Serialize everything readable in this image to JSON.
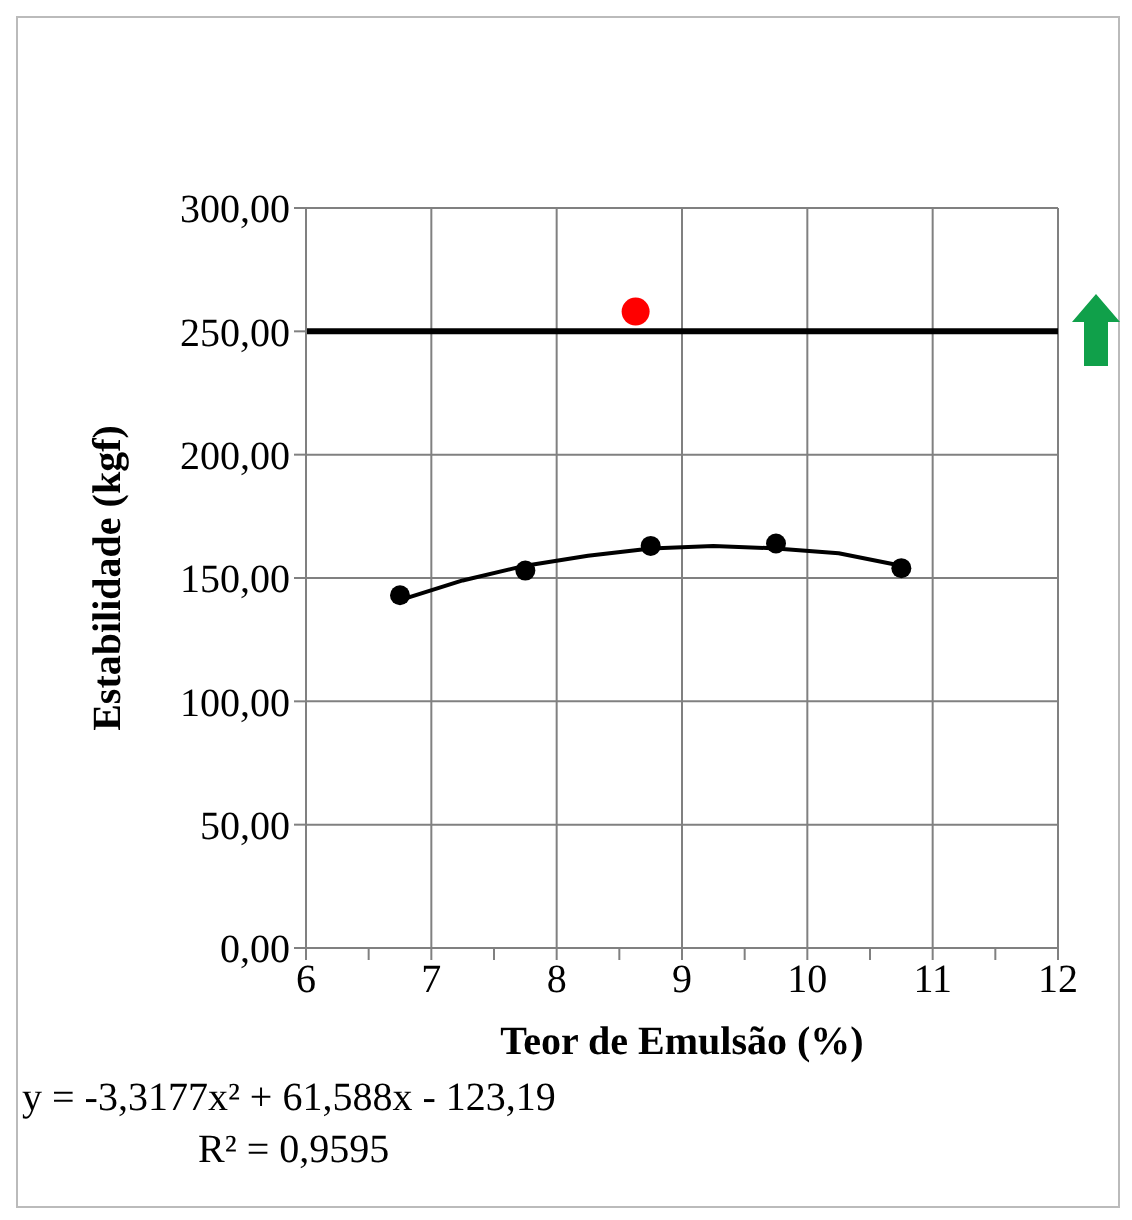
{
  "chart_data": {
    "type": "scatter",
    "xlabel": "Teor de Emulsão (%)",
    "ylabel": "Estabilidade (kgf)",
    "xlim": [
      6,
      12
    ],
    "xticks": [
      6,
      {
        "value": 6.5,
        "label": null
      },
      7,
      {
        "value": 7.5,
        "label": null
      },
      8,
      {
        "value": 8.5,
        "label": null
      },
      9,
      {
        "value": 9.5,
        "label": null
      },
      10,
      {
        "value": 10.5,
        "label": null
      },
      11,
      {
        "value": 11.5,
        "label": null
      },
      12
    ],
    "ylim": [
      0,
      300
    ],
    "yticks": [
      {
        "value": 0,
        "label": "0,00"
      },
      {
        "value": 50,
        "label": "50,00"
      },
      {
        "value": 100,
        "label": "100,00"
      },
      {
        "value": 150,
        "label": "150,00"
      },
      {
        "value": 200,
        "label": "200,00"
      },
      {
        "value": 250,
        "label": "250,00"
      },
      {
        "value": 300,
        "label": "300,00"
      }
    ],
    "grid": true,
    "legend": false,
    "series": [
      {
        "color": "#000000",
        "marker": "circle",
        "x": [
          6.75,
          7.75,
          8.75,
          9.75,
          10.75
        ],
        "values": [
          143,
          153,
          163,
          164,
          154
        ]
      },
      {
        "type": "line",
        "color": "#000000",
        "marker": "none",
        "line_style": "solid",
        "x": [
          6.75,
          7.25,
          7.75,
          8.25,
          8.75,
          9.25,
          9.75,
          10.25,
          10.75
        ],
        "values": [
          141,
          149,
          155,
          159,
          162,
          163,
          162,
          160,
          155
        ]
      },
      {
        "color": "#ff0000",
        "marker": "circle",
        "x": [
          8.63
        ],
        "values": [
          258
        ]
      }
    ],
    "ref_lines": [
      {
        "axis": "y",
        "value": 250,
        "color": "#000000"
      }
    ],
    "annotations": [
      "y = -3,3177x² + 61,588x - 123,19",
      "R² = 0,9595"
    ]
  }
}
